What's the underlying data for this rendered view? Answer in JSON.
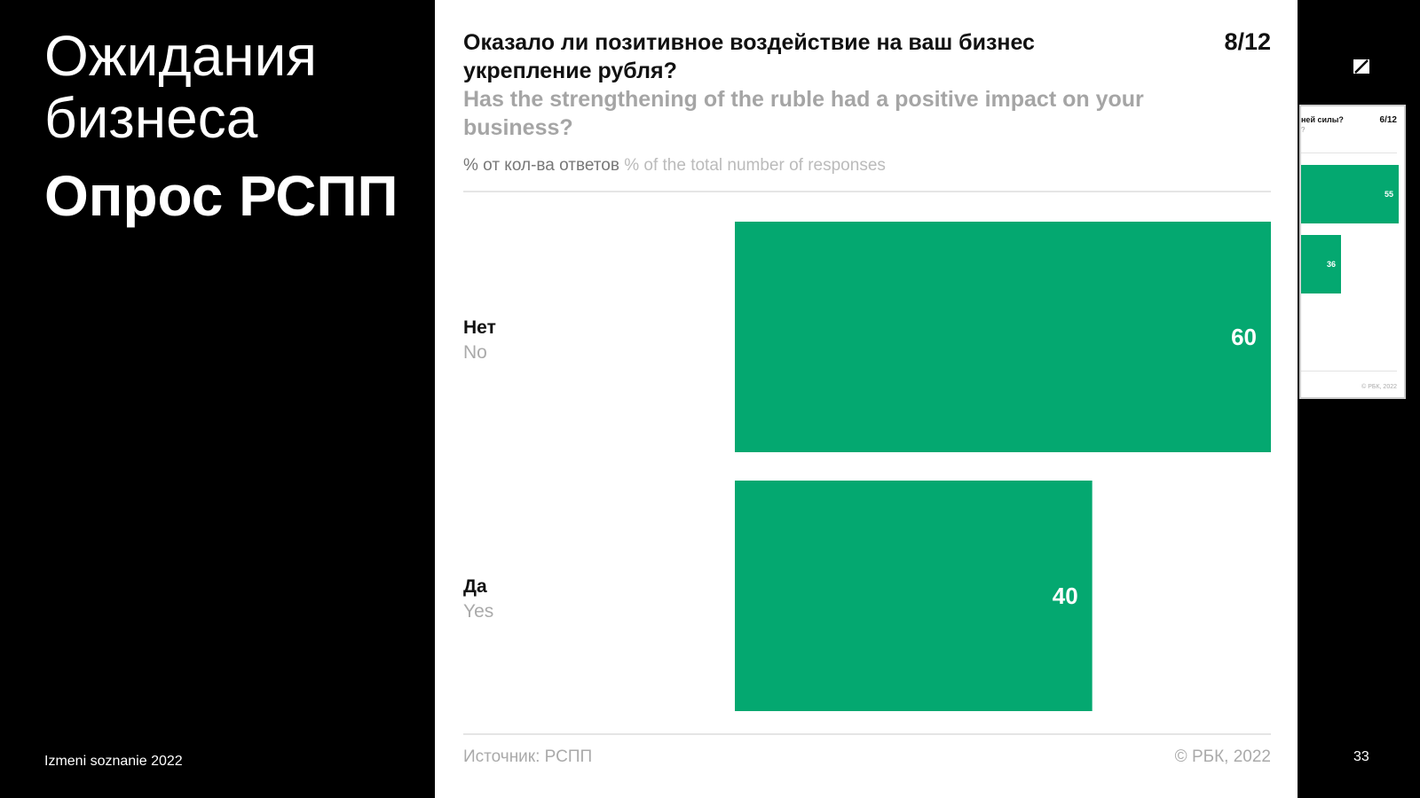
{
  "slide": {
    "title_line1": "Ожидания",
    "title_line2": "бизнеса",
    "subtitle": "Опрос РСПП",
    "footer": "Izmeni soznanie 2022",
    "page_number": "33",
    "side_label": "rbc"
  },
  "thumbnail": {
    "title": "ней силы?",
    "title_line2": "?",
    "page": "6/12",
    "value_1": "55",
    "value_2": "36",
    "copyright": "© РБК, 2022"
  },
  "card": {
    "question_ru": "Оказало ли позитивное воздействие на ваш бизнес укрепление рубля?",
    "question_en": "Has the strengthening of the ruble had a positive impact on your business?",
    "page": "8/12",
    "units_ru": "% от кол-ва ответов",
    "units_en": "% of the total number of responses",
    "source": "Источник: РСПП",
    "copyright": "© РБК, 2022"
  },
  "colors": {
    "bar": "#04a870",
    "background": "#000000"
  },
  "chart_data": {
    "type": "bar",
    "orientation": "horizontal",
    "categories": [
      "Нет",
      "Да"
    ],
    "categories_en": [
      "No",
      "Yes"
    ],
    "values": [
      60,
      40
    ],
    "xlim": [
      0,
      60
    ],
    "grid": false
  }
}
